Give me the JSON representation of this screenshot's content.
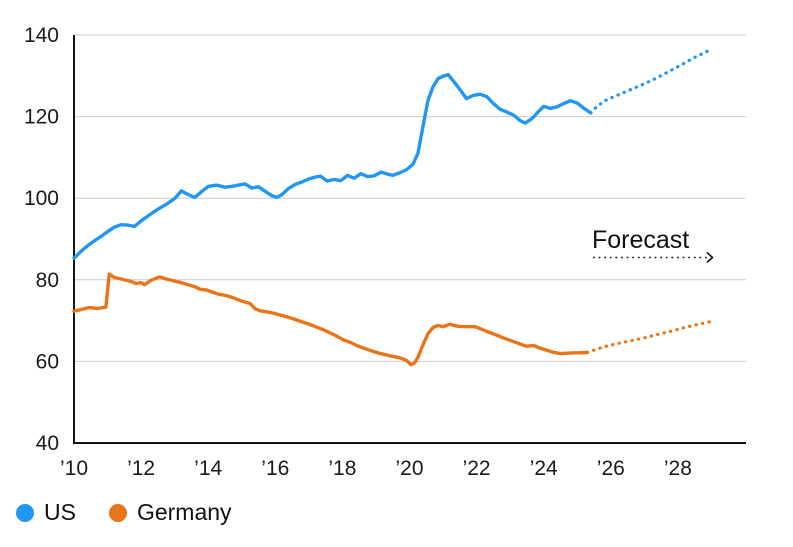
{
  "chart_data": {
    "type": "line",
    "title": "",
    "xlabel": "",
    "ylabel": "",
    "ylim": [
      40,
      140
    ],
    "xlim": [
      2010,
      2029
    ],
    "grid": "horizontal",
    "legend_position": "bottom-left",
    "forecast_label": "Forecast",
    "y_ticks": [
      40,
      60,
      80,
      100,
      120,
      140
    ],
    "x_ticks": [
      {
        "year": 2010,
        "label": "’10"
      },
      {
        "year": 2012,
        "label": "’12"
      },
      {
        "year": 2014,
        "label": "’14"
      },
      {
        "year": 2016,
        "label": "’16"
      },
      {
        "year": 2018,
        "label": "’18"
      },
      {
        "year": 2020,
        "label": "’20"
      },
      {
        "year": 2022,
        "label": "’22"
      },
      {
        "year": 2024,
        "label": "’24"
      },
      {
        "year": 2026,
        "label": "’26"
      },
      {
        "year": 2028,
        "label": "’28"
      }
    ],
    "series": [
      {
        "name": "US",
        "color": "#2196f3",
        "history": [
          [
            2010.0,
            85.3
          ],
          [
            2010.2,
            86.9
          ],
          [
            2010.4,
            88.3
          ],
          [
            2010.6,
            89.5
          ],
          [
            2010.8,
            90.6
          ],
          [
            2011.0,
            91.8
          ],
          [
            2011.2,
            92.9
          ],
          [
            2011.4,
            93.5
          ],
          [
            2011.6,
            93.4
          ],
          [
            2011.8,
            93.1
          ],
          [
            2012.0,
            94.4
          ],
          [
            2012.25,
            95.9
          ],
          [
            2012.5,
            97.3
          ],
          [
            2012.75,
            98.5
          ],
          [
            2013.0,
            99.9
          ],
          [
            2013.2,
            101.8
          ],
          [
            2013.4,
            100.9
          ],
          [
            2013.6,
            100.2
          ],
          [
            2013.8,
            101.6
          ],
          [
            2014.0,
            102.9
          ],
          [
            2014.25,
            103.2
          ],
          [
            2014.5,
            102.7
          ],
          [
            2014.7,
            102.9
          ],
          [
            2014.9,
            103.2
          ],
          [
            2015.1,
            103.5
          ],
          [
            2015.3,
            102.5
          ],
          [
            2015.5,
            102.8
          ],
          [
            2015.7,
            101.7
          ],
          [
            2015.9,
            100.6
          ],
          [
            2016.05,
            100.2
          ],
          [
            2016.2,
            100.9
          ],
          [
            2016.4,
            102.4
          ],
          [
            2016.6,
            103.4
          ],
          [
            2016.8,
            104.0
          ],
          [
            2017.0,
            104.7
          ],
          [
            2017.2,
            105.2
          ],
          [
            2017.35,
            105.4
          ],
          [
            2017.55,
            104.2
          ],
          [
            2017.75,
            104.6
          ],
          [
            2017.95,
            104.3
          ],
          [
            2018.15,
            105.6
          ],
          [
            2018.35,
            104.9
          ],
          [
            2018.55,
            106.0
          ],
          [
            2018.75,
            105.3
          ],
          [
            2018.95,
            105.5
          ],
          [
            2019.15,
            106.4
          ],
          [
            2019.35,
            105.9
          ],
          [
            2019.5,
            105.6
          ],
          [
            2019.7,
            106.2
          ],
          [
            2019.9,
            106.9
          ],
          [
            2020.1,
            108.3
          ],
          [
            2020.25,
            111.0
          ],
          [
            2020.4,
            117.5
          ],
          [
            2020.55,
            124.0
          ],
          [
            2020.7,
            127.3
          ],
          [
            2020.85,
            129.3
          ],
          [
            2021.0,
            129.9
          ],
          [
            2021.15,
            130.3
          ],
          [
            2021.3,
            128.8
          ],
          [
            2021.5,
            126.7
          ],
          [
            2021.7,
            124.4
          ],
          [
            2021.9,
            125.2
          ],
          [
            2022.1,
            125.5
          ],
          [
            2022.3,
            124.9
          ],
          [
            2022.5,
            123.2
          ],
          [
            2022.7,
            121.8
          ],
          [
            2022.9,
            121.1
          ],
          [
            2023.1,
            120.4
          ],
          [
            2023.3,
            119.0
          ],
          [
            2023.45,
            118.4
          ],
          [
            2023.65,
            119.5
          ],
          [
            2023.85,
            121.3
          ],
          [
            2024.0,
            122.5
          ],
          [
            2024.2,
            122.0
          ],
          [
            2024.4,
            122.4
          ],
          [
            2024.6,
            123.2
          ],
          [
            2024.8,
            123.9
          ],
          [
            2025.0,
            123.3
          ],
          [
            2025.2,
            122.0
          ],
          [
            2025.4,
            120.9
          ]
        ],
        "forecast": [
          [
            2025.4,
            120.9
          ],
          [
            2025.6,
            122.6
          ],
          [
            2025.85,
            124.0
          ],
          [
            2026.1,
            124.9
          ],
          [
            2026.5,
            126.3
          ],
          [
            2026.9,
            127.7
          ],
          [
            2027.3,
            129.2
          ],
          [
            2027.7,
            130.9
          ],
          [
            2028.1,
            132.7
          ],
          [
            2028.5,
            134.5
          ],
          [
            2029.0,
            136.5
          ]
        ]
      },
      {
        "name": "Germany",
        "color": "#e8751a",
        "history": [
          [
            2010.0,
            72.3
          ],
          [
            2010.2,
            72.7
          ],
          [
            2010.45,
            73.2
          ],
          [
            2010.7,
            73.0
          ],
          [
            2010.95,
            73.3
          ],
          [
            2011.05,
            81.4
          ],
          [
            2011.2,
            80.6
          ],
          [
            2011.4,
            80.2
          ],
          [
            2011.7,
            79.6
          ],
          [
            2011.85,
            79.1
          ],
          [
            2012.0,
            79.3
          ],
          [
            2012.1,
            78.8
          ],
          [
            2012.3,
            79.9
          ],
          [
            2012.55,
            80.7
          ],
          [
            2012.75,
            80.2
          ],
          [
            2012.95,
            79.8
          ],
          [
            2013.2,
            79.3
          ],
          [
            2013.4,
            78.8
          ],
          [
            2013.6,
            78.3
          ],
          [
            2013.75,
            77.7
          ],
          [
            2013.95,
            77.5
          ],
          [
            2014.15,
            76.9
          ],
          [
            2014.3,
            76.5
          ],
          [
            2014.55,
            76.1
          ],
          [
            2014.75,
            75.6
          ],
          [
            2014.95,
            74.9
          ],
          [
            2015.25,
            74.2
          ],
          [
            2015.4,
            72.9
          ],
          [
            2015.55,
            72.4
          ],
          [
            2015.85,
            72.0
          ],
          [
            2016.05,
            71.6
          ],
          [
            2016.35,
            70.9
          ],
          [
            2016.55,
            70.4
          ],
          [
            2016.75,
            69.8
          ],
          [
            2016.95,
            69.3
          ],
          [
            2017.2,
            68.5
          ],
          [
            2017.45,
            67.7
          ],
          [
            2017.65,
            66.9
          ],
          [
            2017.85,
            66.1
          ],
          [
            2018.05,
            65.2
          ],
          [
            2018.25,
            64.6
          ],
          [
            2018.45,
            63.8
          ],
          [
            2018.65,
            63.2
          ],
          [
            2018.9,
            62.5
          ],
          [
            2019.1,
            62.0
          ],
          [
            2019.4,
            61.4
          ],
          [
            2019.7,
            60.9
          ],
          [
            2019.9,
            60.3
          ],
          [
            2020.05,
            59.2
          ],
          [
            2020.15,
            59.6
          ],
          [
            2020.25,
            61.0
          ],
          [
            2020.4,
            64.0
          ],
          [
            2020.55,
            66.8
          ],
          [
            2020.7,
            68.3
          ],
          [
            2020.85,
            68.8
          ],
          [
            2021.0,
            68.5
          ],
          [
            2021.2,
            69.1
          ],
          [
            2021.45,
            68.6
          ],
          [
            2021.7,
            68.5
          ],
          [
            2021.95,
            68.5
          ],
          [
            2022.15,
            67.9
          ],
          [
            2022.35,
            67.2
          ],
          [
            2022.55,
            66.6
          ],
          [
            2022.75,
            65.9
          ],
          [
            2022.95,
            65.3
          ],
          [
            2023.15,
            64.7
          ],
          [
            2023.35,
            64.1
          ],
          [
            2023.5,
            63.7
          ],
          [
            2023.7,
            63.9
          ],
          [
            2023.9,
            63.2
          ],
          [
            2024.1,
            62.7
          ],
          [
            2024.3,
            62.2
          ],
          [
            2024.5,
            61.9
          ],
          [
            2024.7,
            62.0
          ],
          [
            2024.9,
            62.1
          ],
          [
            2025.1,
            62.1
          ],
          [
            2025.3,
            62.2
          ]
        ],
        "forecast": [
          [
            2025.3,
            62.2
          ],
          [
            2025.55,
            62.9
          ],
          [
            2025.8,
            63.6
          ],
          [
            2026.1,
            64.2
          ],
          [
            2026.5,
            64.9
          ],
          [
            2026.9,
            65.6
          ],
          [
            2027.3,
            66.4
          ],
          [
            2027.7,
            67.2
          ],
          [
            2028.1,
            68.1
          ],
          [
            2028.5,
            68.9
          ],
          [
            2029.0,
            69.8
          ]
        ]
      }
    ]
  },
  "legend": {
    "items": [
      {
        "label": "US",
        "color": "#2196f3"
      },
      {
        "label": "Germany",
        "color": "#e8751a"
      }
    ]
  }
}
